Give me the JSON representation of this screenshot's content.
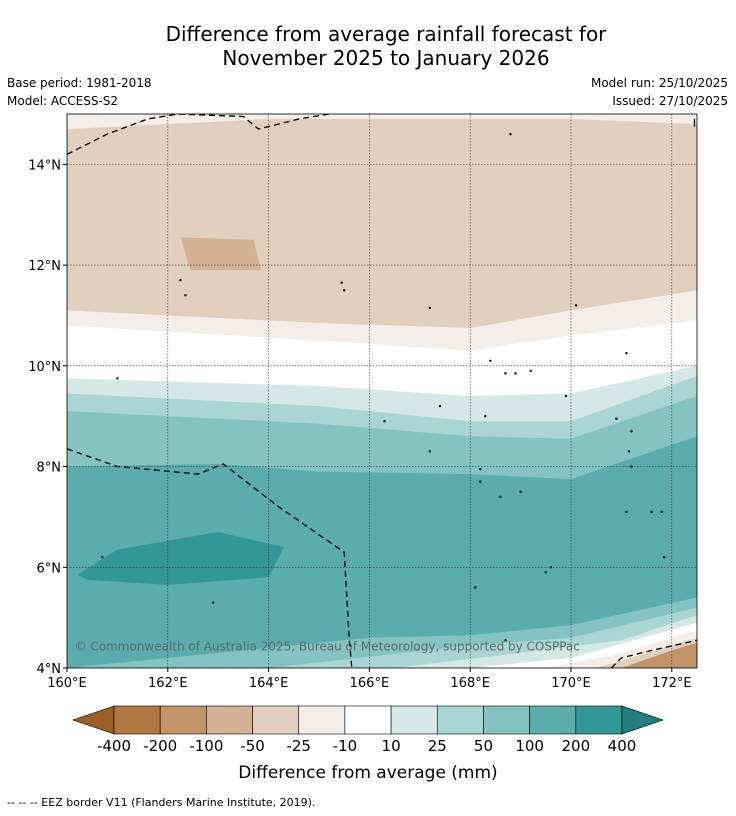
{
  "page": {
    "title_line1": "Difference from average rainfall forecast for",
    "title_line2": "November 2025 to January 2026",
    "base_period": "Base period: 1981-2018",
    "model": "Model: ACCESS-S2",
    "model_run": "Model run: 25/10/2025",
    "issued": "Issued: 27/10/2025",
    "copyright": "© Commonwealth of Australia 2025, Bureau of Meteorology, supported by COSPPac",
    "footer_legend": "--  --  -- EEZ border V11 (Flanders Marine Institute, 2019)."
  },
  "chart_data": {
    "type": "heatmap",
    "title": "Difference from average rainfall forecast for November 2025 to January 2026",
    "xlabel": "",
    "ylabel": "",
    "x_range_deg_east": [
      160,
      172.5
    ],
    "y_range_deg_north": [
      4,
      15
    ],
    "x_ticks": [
      {
        "value": 160,
        "label": "160°E"
      },
      {
        "value": 162,
        "label": "162°E"
      },
      {
        "value": 164,
        "label": "164°E"
      },
      {
        "value": 166,
        "label": "166°E"
      },
      {
        "value": 168,
        "label": "168°E"
      },
      {
        "value": 170,
        "label": "170°E"
      },
      {
        "value": 172,
        "label": "172°E"
      }
    ],
    "y_ticks": [
      {
        "value": 4,
        "label": "4°N"
      },
      {
        "value": 6,
        "label": "6°N"
      },
      {
        "value": 8,
        "label": "8°N"
      },
      {
        "value": 10,
        "label": "10°N"
      },
      {
        "value": 12,
        "label": "12°N"
      },
      {
        "value": 14,
        "label": "14°N"
      }
    ],
    "grid": true,
    "colorbar": {
      "label": "Difference from average (mm)",
      "boundaries": [
        "-400",
        "-200",
        "-100",
        "-50",
        "-25",
        "-10",
        "10",
        "25",
        "50",
        "100",
        "200",
        "400"
      ],
      "colors": [
        "#9a5f2b",
        "#b0773f",
        "#c29469",
        "#d4b295",
        "#e3cfbe",
        "#f4ede8",
        "#ffffff",
        "#d4e8e8",
        "#abd5d5",
        "#85c2c2",
        "#5aacad",
        "#319897",
        "#237e7e"
      ]
    },
    "bands": [
      {
        "value_range": [
          -25,
          -10
        ],
        "lat_south_at_lon": [
          [
            160,
            10.8
          ],
          [
            165,
            10.5
          ],
          [
            168,
            10.3
          ],
          [
            170,
            10.6
          ],
          [
            172.5,
            10.9
          ]
        ],
        "lat_north": 15
      },
      {
        "value_range": [
          -50,
          -25
        ],
        "lat_south_at_lon": [
          [
            160,
            11.1
          ],
          [
            165,
            10.85
          ],
          [
            168,
            10.75
          ],
          [
            170,
            11.1
          ],
          [
            172.5,
            11.5
          ]
        ],
        "lat_north_at_lon": [
          [
            160,
            14.7
          ],
          [
            162,
            14.8
          ],
          [
            164,
            14.9
          ],
          [
            166,
            14.9
          ],
          [
            168,
            14.9
          ],
          [
            170,
            14.9
          ],
          [
            172.5,
            14.8
          ]
        ]
      },
      {
        "value_range": [
          -100,
          -50
        ],
        "region": "patch near 162.3-163.9°E, 11.9-12.6°N"
      },
      {
        "value_range": [
          10,
          25
        ],
        "lat_north_at_lon": [
          [
            160,
            9.75
          ],
          [
            165,
            9.6
          ],
          [
            168,
            9.4
          ],
          [
            170,
            9.45
          ],
          [
            172.5,
            10.0
          ]
        ]
      },
      {
        "value_range": [
          25,
          50
        ],
        "lat_north_at_lon": [
          [
            160,
            9.45
          ],
          [
            165,
            9.2
          ],
          [
            168,
            8.9
          ],
          [
            170,
            8.9
          ],
          [
            172.5,
            9.8
          ]
        ]
      },
      {
        "value_range": [
          50,
          100
        ],
        "lat_north_at_lon": [
          [
            160,
            9.1
          ],
          [
            165,
            8.85
          ],
          [
            168,
            8.6
          ],
          [
            170,
            8.55
          ],
          [
            172.5,
            9.4
          ]
        ]
      },
      {
        "value_range": [
          100,
          200
        ],
        "lat_north_at_lon": [
          [
            160,
            8.0
          ],
          [
            163,
            8.05
          ],
          [
            165,
            7.9
          ],
          [
            168,
            7.85
          ],
          [
            170,
            7.75
          ],
          [
            172.5,
            8.6
          ]
        ],
        "lat_south_at_lon": [
          [
            160,
            4.0
          ],
          [
            166,
            4.6
          ],
          [
            168,
            4.65
          ],
          [
            170,
            4.85
          ],
          [
            172.5,
            5.4
          ]
        ]
      },
      {
        "value_range": [
          200,
          400
        ],
        "region": "patch near 160.2-164.3°E, 5.7-6.7°N"
      }
    ]
  }
}
